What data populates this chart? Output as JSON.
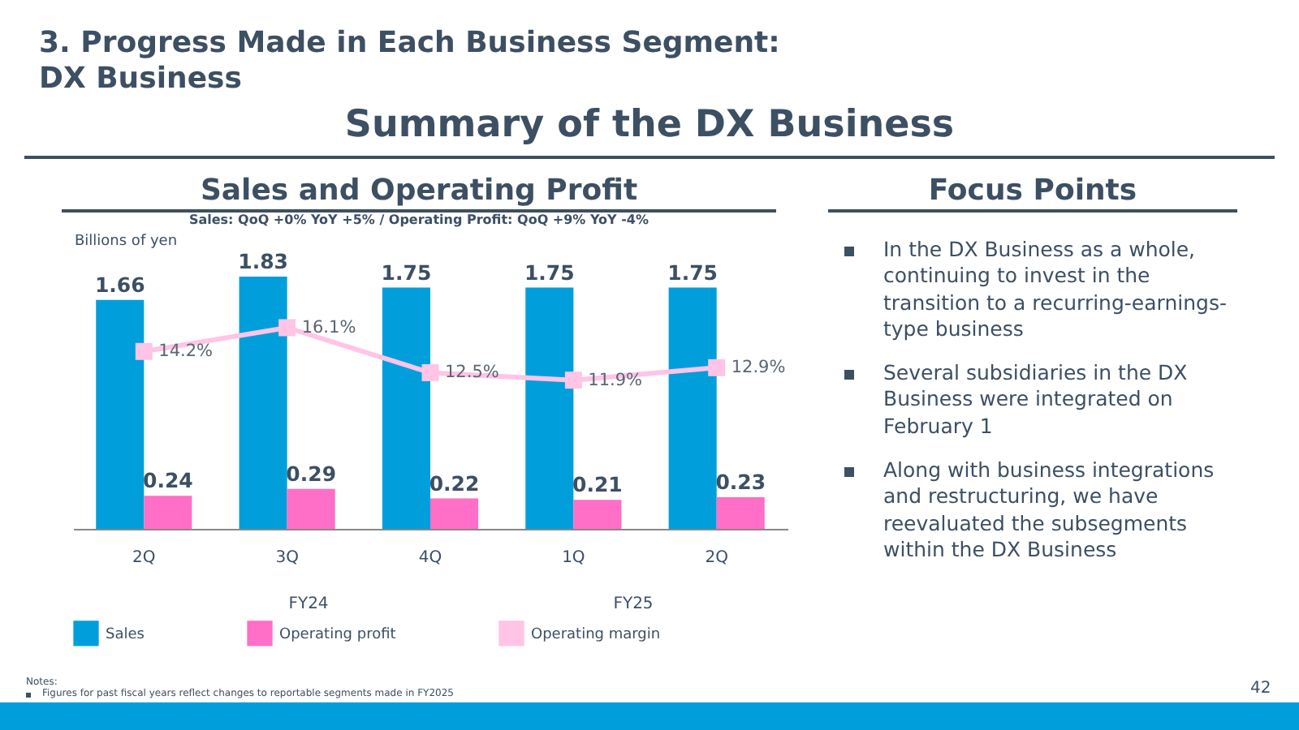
{
  "chart_data": {
    "type": "bar",
    "title": "3. Progress Made in Each Business Segment: DX Business",
    "subtitle": "Summary of the DX Business",
    "ylabel": "Billions of yen",
    "categories": [
      "2Q",
      "3Q",
      "4Q",
      "1Q",
      "2Q"
    ],
    "series": [
      {
        "name": "Sales",
        "color": "#009fdb",
        "values": [
          1.66,
          1.83,
          1.75,
          1.75,
          1.75
        ],
        "value_labels": [
          "1.66",
          "1.83",
          "1.75",
          "1.75",
          "1.75"
        ]
      },
      {
        "name": "Operating profit",
        "color": "#ff6ec7",
        "values": [
          0.24,
          0.29,
          0.22,
          0.21,
          0.23
        ],
        "value_labels": [
          "0.24",
          "0.29",
          "0.22",
          "0.21",
          "0.23"
        ]
      },
      {
        "name": "Operating margin",
        "type": "line",
        "axis": "y2",
        "color": "#ffc4e6",
        "marker": "square",
        "values": [
          14.2,
          16.1,
          12.5,
          11.9,
          12.9
        ],
        "value_labels": [
          "14.2%",
          "16.1%",
          "12.5%",
          "11.9%",
          "12.9%"
        ]
      }
    ],
    "legend": "bottom",
    "annotations": [
      "Sales and Operating Profit",
      "Sales: QoQ +0% YoY +5% / Operating Profit: QoQ +9% YoY -4%",
      "FY24",
      "FY25",
      "Focus Points",
      "In the DX Business as a whole, continuing to invest in the transition to a recurring-earnings-type business",
      "Several subsidiaries in the DX Business were integrated on February 1",
      "Along with business integrations and restructuring, we have reevaluated the subsegments within the DX Business",
      "Notes:",
      "Figures for past fiscal years reflect changes to reportable segments made in FY2025",
      "42"
    ]
  }
}
